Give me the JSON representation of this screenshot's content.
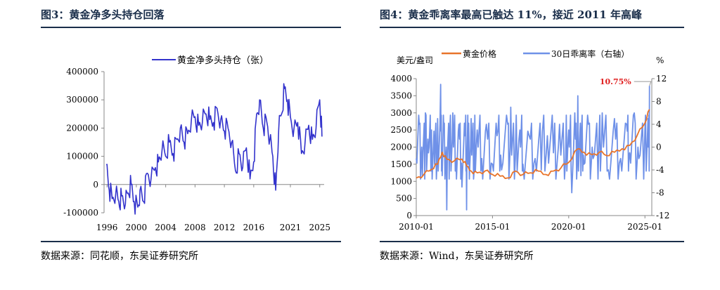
{
  "left_panel": {
    "title": "图3：黄金净多头持仓回落",
    "source": "数据来源：同花顺，东吴证券研究所"
  },
  "right_panel": {
    "title": "图4：黄金乖离率最高已触达 11%，接近 2011 年高峰",
    "source": "数据来源：Wind，东吴证券研究所"
  },
  "chart_data": [
    {
      "type": "line",
      "title": "",
      "legend": [
        "黄金净多头持仓（张）"
      ],
      "legend_position": "top",
      "ylim": [
        -100000,
        400000
      ],
      "y_ticks": [
        "400000",
        "300000",
        "200000",
        "100000",
        "0",
        "-100000"
      ],
      "x_ticks": [
        "1996",
        "2000",
        "2004",
        "2008",
        "2012",
        "2016",
        "2021",
        "2025"
      ],
      "colors": [
        "#3333cc"
      ],
      "series": [
        {
          "name": "黄金净多头持仓（张）",
          "x": [
            1995.9,
            1996.3,
            1996.7,
            1997.2,
            1997.6,
            1998.0,
            1998.5,
            1998.9,
            1999.3,
            1999.7,
            2000.2,
            2000.5,
            2001.0,
            2001.5,
            2002.0,
            2002.6,
            2003.0,
            2003.5,
            2004.0,
            2004.5,
            2005.0,
            2005.5,
            2006.0,
            2006.5,
            2007.0,
            2007.5,
            2008.0,
            2008.5,
            2009.0,
            2009.5,
            2010.0,
            2010.5,
            2011.0,
            2011.5,
            2012.0,
            2012.5,
            2013.0,
            2013.5,
            2014.0,
            2014.5,
            2015.0,
            2015.5,
            2016.0,
            2016.4,
            2016.8,
            2017.3,
            2017.8,
            2018.2,
            2018.6,
            2019.0,
            2019.4,
            2019.8,
            2020.2,
            2020.6,
            2021.0,
            2021.5,
            2022.0,
            2022.5,
            2023.0,
            2023.5,
            2024.0,
            2024.5,
            2025.0,
            2025.3
          ],
          "values": [
            70000,
            -20000,
            -50000,
            -30000,
            -60000,
            -40000,
            -70000,
            -30000,
            0,
            -60000,
            -80000,
            -20000,
            -60000,
            40000,
            20000,
            60000,
            80000,
            120000,
            100000,
            150000,
            110000,
            160000,
            200000,
            150000,
            180000,
            230000,
            240000,
            210000,
            220000,
            250000,
            230000,
            220000,
            270000,
            230000,
            190000,
            200000,
            150000,
            50000,
            110000,
            60000,
            130000,
            20000,
            80000,
            250000,
            300000,
            200000,
            220000,
            160000,
            100000,
            -20000,
            190000,
            250000,
            340000,
            300000,
            240000,
            200000,
            220000,
            110000,
            150000,
            210000,
            160000,
            200000,
            300000,
            170000
          ]
        }
      ]
    },
    {
      "type": "line",
      "title": "",
      "legend": [
        "黄金价格",
        "30日乖离率（右轴）"
      ],
      "legend_position": "top",
      "y_left_label": "美元/盎司",
      "y_right_label": "%",
      "ylim_left": [
        0,
        4000
      ],
      "ylim_right": [
        -12,
        12
      ],
      "y_left_ticks": [
        "4000",
        "3500",
        "3000",
        "2500",
        "2000",
        "1500",
        "1000",
        "500",
        "0"
      ],
      "y_right_ticks": [
        "12",
        "8",
        "4",
        "0",
        "-4",
        "-8",
        "-12"
      ],
      "x_ticks": [
        "2010-01",
        "2015-01",
        "2020-01",
        "2025-01"
      ],
      "annotation": "10.75%",
      "colors": [
        "#e8742a",
        "#6f91e8"
      ],
      "series": [
        {
          "name": "黄金价格",
          "x": [
            2010.0,
            2010.5,
            2011.0,
            2011.4,
            2011.7,
            2012.0,
            2012.5,
            2013.0,
            2013.3,
            2013.6,
            2014.0,
            2014.5,
            2015.0,
            2015.5,
            2016.0,
            2016.5,
            2017.0,
            2017.5,
            2018.0,
            2018.5,
            2019.0,
            2019.5,
            2020.0,
            2020.6,
            2021.0,
            2021.5,
            2022.0,
            2022.5,
            2023.0,
            2023.5,
            2024.0,
            2024.5,
            2025.0,
            2025.3
          ],
          "values": [
            1100,
            1200,
            1350,
            1500,
            1850,
            1650,
            1600,
            1650,
            1450,
            1300,
            1250,
            1300,
            1200,
            1150,
            1100,
            1300,
            1200,
            1250,
            1300,
            1200,
            1300,
            1400,
            1550,
            1950,
            1850,
            1780,
            1850,
            1750,
            1850,
            1950,
            2050,
            2350,
            2700,
            3100
          ]
        },
        {
          "name": "30日乖离率（右轴）",
          "x": [
            2010.0,
            2010.2,
            2010.4,
            2010.6,
            2010.8,
            2011.0,
            2011.2,
            2011.4,
            2011.6,
            2011.7,
            2011.8,
            2012.0,
            2012.2,
            2012.4,
            2012.6,
            2012.8,
            2013.0,
            2013.2,
            2013.3,
            2013.4,
            2013.6,
            2013.8,
            2014.0,
            2014.3,
            2014.6,
            2015.0,
            2015.3,
            2015.6,
            2016.0,
            2016.2,
            2016.5,
            2016.8,
            2017.0,
            2017.4,
            2017.8,
            2018.2,
            2018.6,
            2019.0,
            2019.4,
            2019.8,
            2020.0,
            2020.2,
            2020.4,
            2020.6,
            2020.8,
            2021.0,
            2021.3,
            2021.6,
            2022.0,
            2022.2,
            2022.6,
            2023.0,
            2023.4,
            2023.8,
            2024.0,
            2024.3,
            2024.6,
            2025.0,
            2025.2,
            2025.3
          ],
          "values": [
            -2,
            4,
            -5,
            6,
            -1,
            3,
            -3,
            5,
            11,
            -5,
            4,
            -11,
            3,
            6,
            -2,
            4,
            -7,
            2,
            -11,
            -3,
            5,
            -4,
            3,
            -2,
            4,
            -3,
            2,
            -4,
            4,
            7,
            -2,
            3,
            -3,
            2,
            -2,
            -4,
            2,
            -1,
            4,
            -2,
            3,
            -8,
            6,
            9,
            -5,
            -3,
            4,
            -2,
            3,
            6,
            -4,
            5,
            -2,
            4,
            -1,
            6,
            -2,
            3,
            5,
            10.75
          ]
        }
      ]
    }
  ]
}
